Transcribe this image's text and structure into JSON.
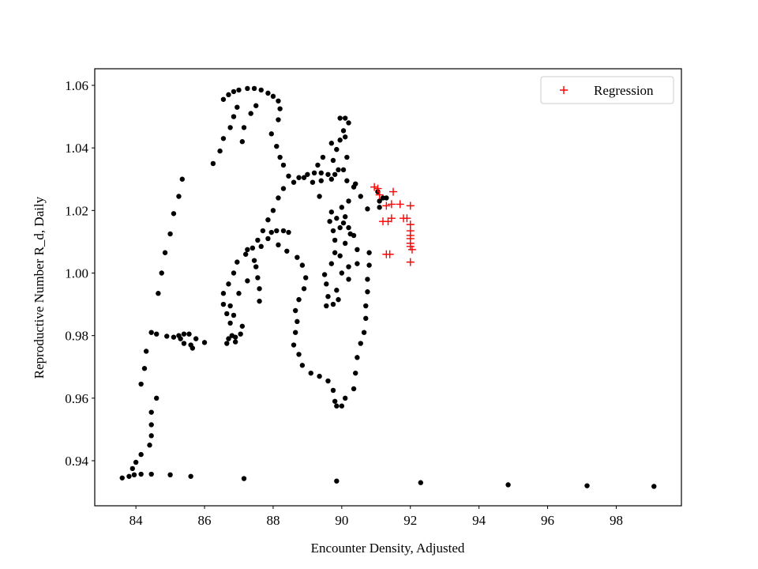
{
  "chart_data": {
    "type": "scatter",
    "x_label": "Encounter Density, Adjusted",
    "y_label": "Reproductive Number R_d, Daily",
    "xlim": [
      82.8,
      99.9
    ],
    "ylim": [
      0.9256,
      1.0653
    ],
    "xticks": [
      84,
      86,
      88,
      90,
      92,
      94,
      96,
      98
    ],
    "yticks": [
      0.94,
      0.96,
      0.98,
      {
        "value": 1,
        "label": "1.00"
      },
      1.02,
      1.04,
      1.06
    ],
    "legend": "upper right",
    "series": [
      {
        "color": "#000000",
        "marker": "dot",
        "x": [
          83.6,
          83.8,
          83.95,
          84.15,
          84.45,
          85.0,
          85.6,
          87.15,
          89.85,
          92.3,
          94.85,
          97.15,
          99.1,
          83.9,
          84.0,
          84.15,
          84.4,
          84.45,
          84.45,
          84.45,
          84.6,
          84.15,
          84.25,
          84.3,
          84.45,
          84.65,
          84.75,
          84.85,
          85.0,
          85.1,
          85.25,
          85.35,
          84.6,
          84.9,
          85.1,
          85.25,
          85.4,
          85.55,
          85.3,
          85.4,
          85.6,
          85.75,
          86.0,
          85.65,
          86.25,
          86.45,
          86.55,
          86.75,
          86.85,
          86.95,
          86.55,
          86.7,
          86.85,
          87.0,
          87.25,
          87.45,
          87.65,
          87.85,
          88.0,
          88.15,
          88.2,
          88.15,
          87.5,
          87.35,
          87.15,
          87.1,
          87.95,
          88.1,
          88.2,
          88.3,
          88.45,
          88.6,
          88.75,
          88.9,
          88.3,
          88.15,
          88.0,
          87.85,
          87.7,
          87.55,
          87.4,
          87.2,
          86.95,
          86.85,
          86.7,
          86.55,
          86.55,
          86.65,
          86.75,
          86.8,
          86.9,
          86.65,
          86.7,
          86.9,
          87.05,
          87.1,
          86.85,
          86.75,
          87.0,
          87.25,
          87.5,
          87.55,
          87.6,
          87.6,
          87.45,
          87.25,
          87.65,
          87.85,
          87.95,
          88.1,
          88.3,
          88.45,
          88.15,
          88.4,
          88.7,
          88.85,
          88.95,
          88.9,
          88.75,
          88.65,
          88.7,
          88.65,
          88.6,
          88.75,
          88.85,
          89.1,
          89.35,
          89.6,
          89.75,
          89.8,
          89.85,
          90.0,
          90.1,
          90.35,
          90.4,
          90.45,
          90.55,
          90.65,
          90.7,
          90.7,
          90.75,
          90.75,
          90.8,
          90.8,
          89.0,
          89.2,
          89.4,
          89.6,
          89.8,
          89.4,
          89.15,
          89.7,
          89.9,
          89.75,
          89.85,
          89.95,
          90.05,
          89.95,
          90.1,
          90.2,
          90.1,
          90.15,
          90.05,
          90.15,
          90.35,
          90.55,
          90.75,
          90.4,
          90.2,
          90.0,
          89.7,
          89.85,
          90.05,
          89.65,
          89.75,
          89.8,
          89.8,
          89.7,
          89.5,
          89.55,
          89.6,
          89.55,
          89.75,
          89.9,
          89.85,
          90.0,
          89.95,
          90.1,
          90.25,
          90.2,
          89.95,
          90.1,
          90.35,
          90.45,
          90.45,
          90.2,
          90.2,
          89.3,
          89.45,
          89.7,
          89.35,
          91.1,
          91.1,
          91.2,
          91.3,
          91.05
        ],
        "values": [
          0.9345,
          0.935,
          0.9355,
          0.9357,
          0.9357,
          0.9355,
          0.935,
          0.9343,
          0.9335,
          0.933,
          0.9323,
          0.932,
          0.9318,
          0.9375,
          0.9395,
          0.942,
          0.945,
          0.948,
          0.9515,
          0.9555,
          0.96,
          0.9645,
          0.9695,
          0.975,
          0.981,
          0.9935,
          1.0,
          1.0065,
          1.0125,
          1.019,
          1.0245,
          1.03,
          0.9805,
          0.9798,
          0.9795,
          0.98,
          0.9805,
          0.9805,
          0.979,
          0.9775,
          0.977,
          0.979,
          0.9778,
          0.976,
          1.035,
          1.039,
          1.043,
          1.0465,
          1.05,
          1.053,
          1.0555,
          1.057,
          1.058,
          1.0585,
          1.059,
          1.059,
          1.0585,
          1.0575,
          1.0565,
          1.055,
          1.0525,
          1.049,
          1.0535,
          1.051,
          1.0465,
          1.042,
          1.0445,
          1.0405,
          1.037,
          1.0345,
          1.031,
          1.029,
          1.0305,
          1.0305,
          1.027,
          1.024,
          1.02,
          1.017,
          1.0135,
          1.0105,
          1.008,
          1.006,
          1.0035,
          1.0,
          0.9965,
          0.9935,
          0.99,
          0.987,
          0.984,
          0.98,
          0.978,
          0.9775,
          0.979,
          0.9795,
          0.9805,
          0.983,
          0.9865,
          0.9895,
          0.9935,
          0.9975,
          1.002,
          0.9985,
          0.995,
          0.991,
          1.004,
          1.0075,
          1.0085,
          1.011,
          1.013,
          1.0135,
          1.0135,
          1.013,
          1.009,
          1.007,
          1.005,
          1.0025,
          0.9985,
          0.995,
          0.9915,
          0.988,
          0.9845,
          0.981,
          0.977,
          0.974,
          0.9705,
          0.968,
          0.967,
          0.9655,
          0.9625,
          0.959,
          0.9575,
          0.9575,
          0.96,
          0.963,
          0.968,
          0.973,
          0.9775,
          0.981,
          0.9855,
          0.9895,
          0.994,
          0.998,
          1.0025,
          1.0065,
          1.0315,
          1.032,
          1.032,
          1.0315,
          1.0315,
          1.0295,
          1.029,
          1.03,
          1.033,
          1.036,
          1.0395,
          1.0425,
          1.0455,
          1.0495,
          1.0495,
          1.048,
          1.0435,
          1.037,
          1.033,
          1.0295,
          1.0275,
          1.0245,
          1.0205,
          1.0285,
          1.023,
          1.021,
          1.0195,
          1.0175,
          1.016,
          1.0165,
          1.0135,
          1.0105,
          1.0065,
          1.003,
          0.9995,
          0.9965,
          0.9925,
          0.9895,
          0.99,
          0.9915,
          0.9945,
          1.0,
          1.0055,
          1.0095,
          1.0125,
          1.0145,
          1.0145,
          1.018,
          1.012,
          1.0075,
          1.003,
          1.002,
          0.998,
          1.0345,
          1.037,
          1.0415,
          1.0245,
          1.021,
          1.023,
          1.024,
          1.024,
          1.026
        ]
      },
      {
        "name": "Regression",
        "color": "#ff0000",
        "marker": "plus",
        "x": [
          90.95,
          91.05,
          91.1,
          91.5,
          91.3,
          91.45,
          91.7,
          91.2,
          91.35,
          91.45,
          91.8,
          91.9,
          92.0,
          91.3,
          91.4,
          92.0,
          92.0,
          92.0,
          92.0,
          92.0,
          92.0,
          92.05,
          92.0
        ],
        "values": [
          1.0275,
          1.027,
          1.025,
          1.026,
          1.0215,
          1.022,
          1.022,
          1.0165,
          1.0165,
          1.0175,
          1.0175,
          1.0175,
          1.0215,
          1.006,
          1.006,
          1.0155,
          1.0135,
          1.012,
          1.011,
          1.0095,
          1.0085,
          1.0075,
          1.0035
        ]
      }
    ]
  }
}
